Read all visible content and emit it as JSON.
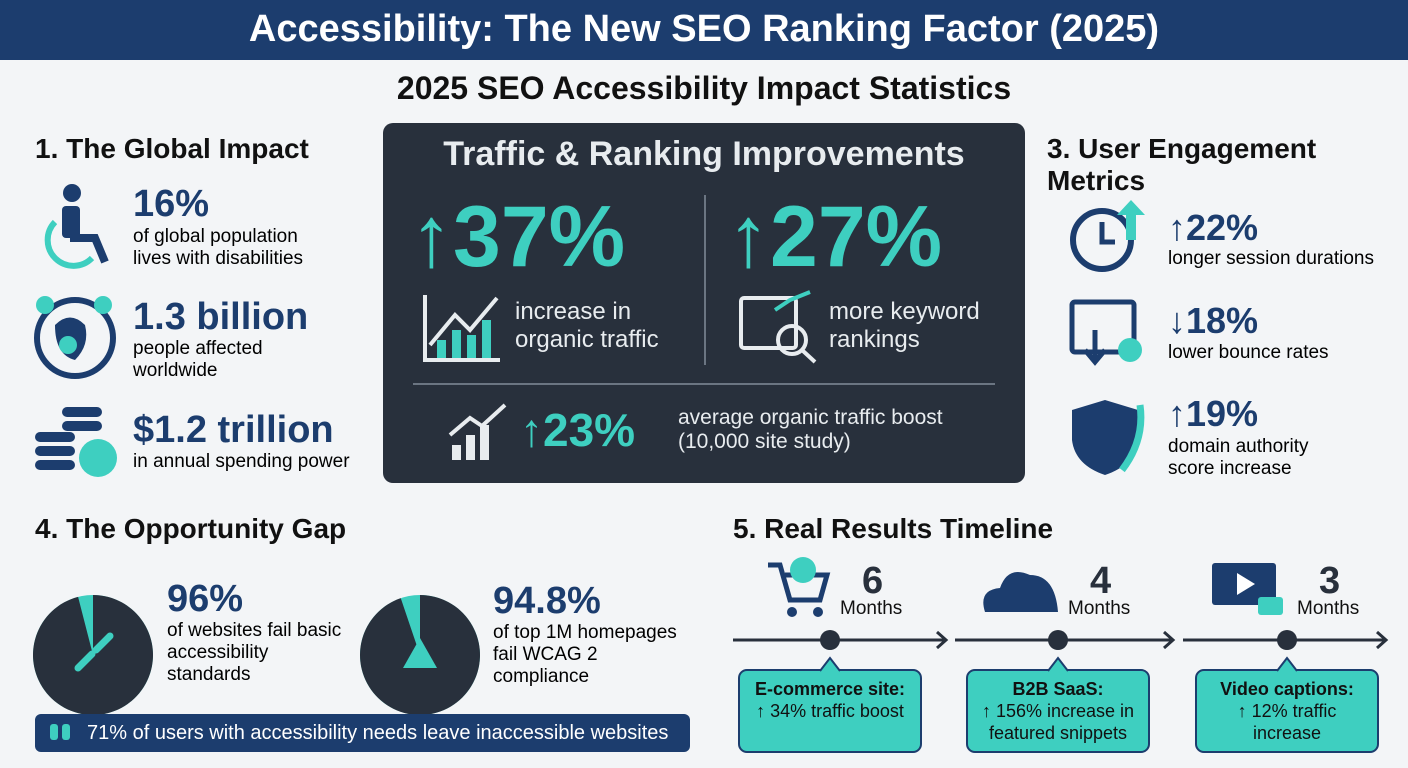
{
  "header": {
    "title": "Accessibility: The New SEO Ranking Factor (2025)",
    "subtitle": "2025 SEO Accessibility Impact Statistics"
  },
  "global_impact": {
    "heading": "1. The Global Impact",
    "items": [
      {
        "stat": "16%",
        "text": "of global population lives with disabilities"
      },
      {
        "stat": "1.3 billion",
        "text": "people affected worldwide"
      },
      {
        "stat": "$1.2 trillion",
        "text": "in annual spending power"
      }
    ]
  },
  "traffic": {
    "heading": "Traffic & Ranking Improvements",
    "items": [
      {
        "stat": "↑37%",
        "text": "increase in organic traffic"
      },
      {
        "stat": "↑27%",
        "text": "more keyword rankings"
      }
    ],
    "summary": {
      "stat": "↑23%",
      "text": "average organic traffic boost (10,000 site study)"
    }
  },
  "engagement": {
    "heading": "3. User Engagement Metrics",
    "items": [
      {
        "stat": "↑22%",
        "text": "longer session durations"
      },
      {
        "stat": "↓18%",
        "text": "lower bounce rates"
      },
      {
        "stat": "↑19%",
        "text": "domain authority score increase"
      }
    ]
  },
  "opportunity": {
    "heading": "4. The Opportunity Gap",
    "items": [
      {
        "stat": {
          "value": 96,
          "label": "96%"
        },
        "text": "of websites fail basic accessibility standards"
      },
      {
        "stat": {
          "value": 94.8,
          "label": "94.8%"
        },
        "text": "of top 1M homepages fail WCAG 2 compliance"
      }
    ],
    "quote": "71% of users with accessibility needs leave inaccessible websites"
  },
  "timeline": {
    "heading": "5. Real Results Timeline",
    "items": [
      {
        "number": "6",
        "unit": "Months",
        "title": "E-commerce site:",
        "text": "↑ 34% traffic boost"
      },
      {
        "number": "4",
        "unit": "Months",
        "title": "B2B SaaS:",
        "text": "↑ 156% increase in featured snippets"
      },
      {
        "number": "3",
        "unit": "Months",
        "title": "Video captions:",
        "text": "↑ 12% traffic increase"
      }
    ]
  }
}
